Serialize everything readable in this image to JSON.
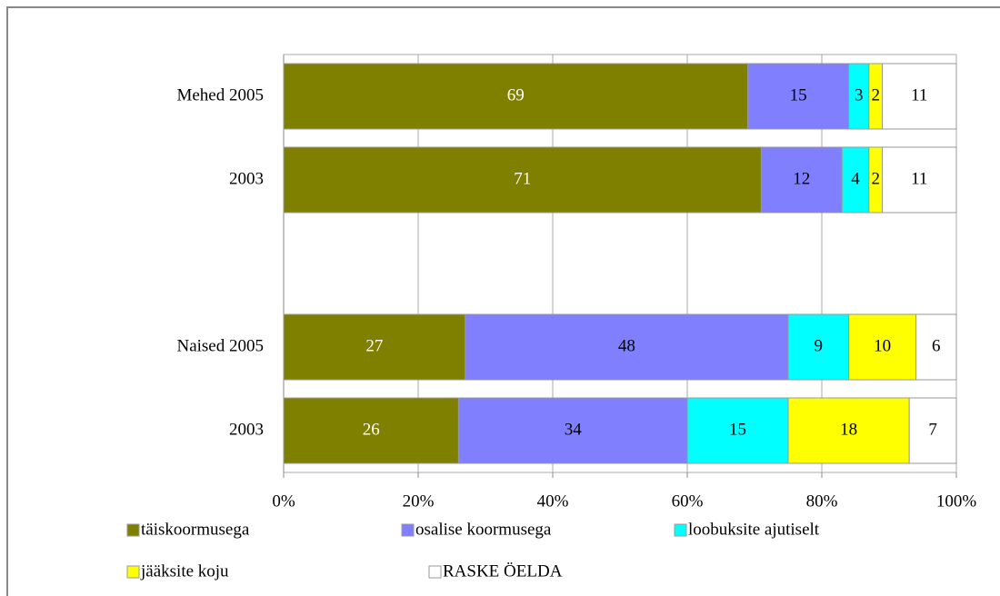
{
  "chart_data": {
    "type": "stacked_bar_horizontal",
    "categories": [
      "Mehed 2005",
      "2003",
      null,
      "Naised 2005",
      "2003"
    ],
    "series": [
      {
        "name": "täiskoormusega",
        "color": "#808000",
        "label_color": "#ffffff",
        "values": [
          69,
          71,
          null,
          27,
          26
        ]
      },
      {
        "name": "osalise koormusega",
        "color": "#8080ff",
        "label_color": "#000000",
        "values": [
          15,
          12,
          null,
          48,
          34
        ]
      },
      {
        "name": "loobuksite ajutiselt",
        "color": "#00ffff",
        "label_color": "#000000",
        "values": [
          3,
          4,
          null,
          9,
          15
        ]
      },
      {
        "name": "jääksite koju",
        "color": "#ffff00",
        "label_color": "#000000",
        "values": [
          2,
          2,
          null,
          10,
          18
        ]
      },
      {
        "name": "RASKE ÖELDA",
        "color": "#ffffff",
        "label_color": "#000000",
        "values": [
          11,
          11,
          null,
          6,
          7
        ]
      }
    ],
    "xlim": [
      0,
      100
    ],
    "xticks": [
      {
        "value": 0,
        "label": "0%"
      },
      {
        "value": 20,
        "label": "20%"
      },
      {
        "value": 40,
        "label": "40%"
      },
      {
        "value": 60,
        "label": "60%"
      },
      {
        "value": 80,
        "label": "80%"
      },
      {
        "value": 100,
        "label": "100%"
      }
    ],
    "grid": true,
    "legend": "bottom"
  }
}
